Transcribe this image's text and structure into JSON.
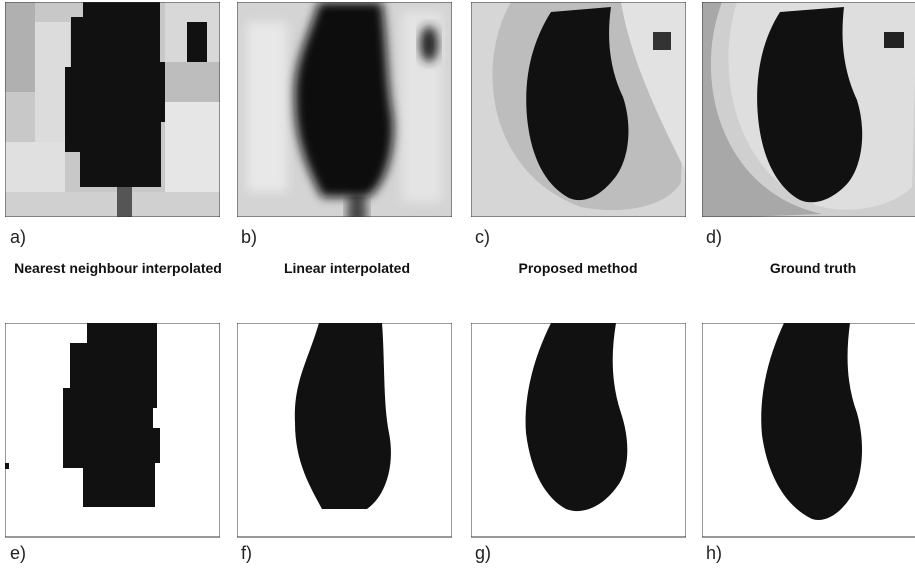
{
  "figure": {
    "top_row": [
      {
        "label": "a)",
        "caption": "Nearest neighbour interpolated"
      },
      {
        "label": "b)",
        "caption": "Linear interpolated"
      },
      {
        "label": "c)",
        "caption": "Proposed method"
      },
      {
        "label": "d)",
        "caption": "Ground truth"
      }
    ],
    "bottom_row": [
      {
        "label": "e)"
      },
      {
        "label": "f)"
      },
      {
        "label": "g)"
      },
      {
        "label": "h)"
      }
    ]
  }
}
